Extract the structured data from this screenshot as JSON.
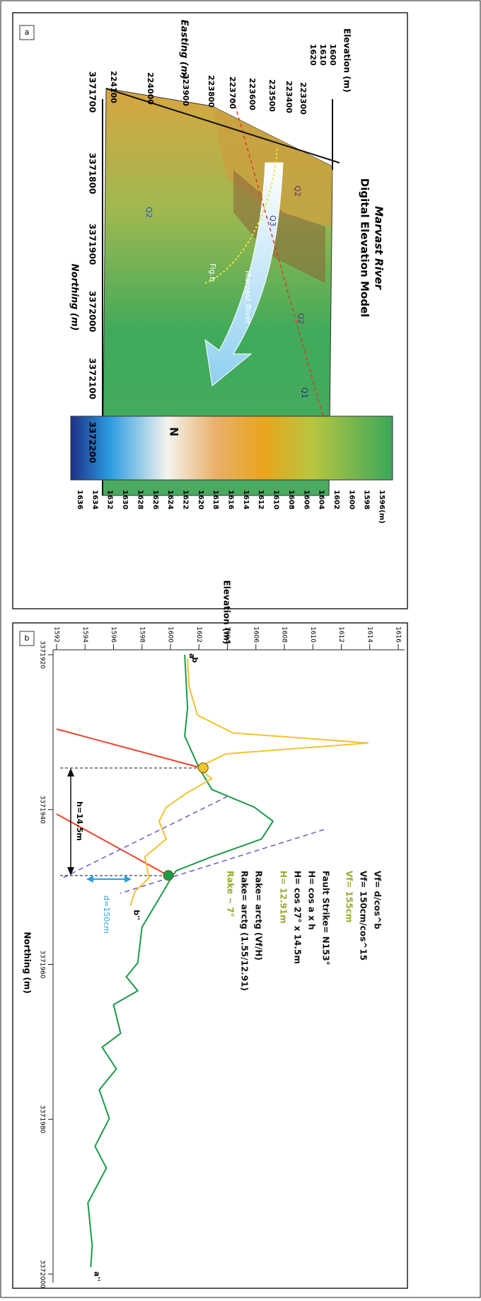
{
  "panel_a": {
    "label": "a",
    "title_lines": [
      "Marvast River",
      "Digital Elevation Model"
    ],
    "elevation_label": "Elevation (m)",
    "elevation_ticks": [
      "1620",
      "1610",
      "1600"
    ],
    "easting_label": "Easting (m)",
    "easting_ticks": [
      "224100",
      "224000",
      "223900",
      "223800",
      "223700",
      "223600",
      "223500",
      "223400",
      "223300"
    ],
    "northing_label": "Northing (m)",
    "northing_ticks": [
      "3371700",
      "3371800",
      "3371900",
      "3372000",
      "3372100",
      "3372200"
    ],
    "map_labels": [
      "Q2",
      "Q3",
      "Q2",
      "Q1",
      "Q2",
      "Fig.b",
      "Marvast River",
      "N"
    ],
    "colorbar_ticks": [
      "1596",
      "1598",
      "1600",
      "1602",
      "1604",
      "1606",
      "1608",
      "1610",
      "1612",
      "1614",
      "1616",
      "1618",
      "1620",
      "1622",
      "1624",
      "1626",
      "1628",
      "1630",
      "1632",
      "1634",
      "1636"
    ],
    "colorbar_unit": "(m)"
  },
  "chart_data": {
    "type": "line",
    "panel_label": "b",
    "xlabel": "Northing (m)",
    "ylabel": "Elevation (m)",
    "xlim": [
      3371920,
      3372000
    ],
    "ylim": [
      1592,
      1616
    ],
    "xticks": [
      3371920,
      3371940,
      3371960,
      3371980,
      3372000
    ],
    "yticks": [
      1592,
      1594,
      1596,
      1598,
      1600,
      1602,
      1604,
      1606,
      1608,
      1610,
      1612,
      1614,
      1616
    ],
    "series": [
      {
        "labels": [
          "a",
          "a''"
        ],
        "color": "#1a9a4a",
        "x": [
          3371920.0,
          3371926.9,
          3371930.5,
          3371934.6,
          3371937.4,
          3371939.7,
          3371941.5,
          3371943.8,
          3371946.1,
          3371947.9,
          3371949.3,
          3371951.5,
          3371955.2,
          3371959.8,
          3371961.6,
          3371963.4,
          3371965.2,
          3371968.9,
          3371970.7,
          3371973.5,
          3371976.2,
          3371979.9,
          3371983.5,
          3371986.3,
          3371990.8,
          3371996.3,
          3371999.1
        ],
        "values": [
          1601.0,
          1601.2,
          1601.0,
          1602.0,
          1602.9,
          1605.9,
          1607.2,
          1606.4,
          1602.9,
          1600.4,
          1599.9,
          1599.2,
          1598.0,
          1597.7,
          1596.9,
          1597.7,
          1596.0,
          1596.5,
          1595.2,
          1596.2,
          1595.0,
          1595.7,
          1594.7,
          1595.5,
          1594.2,
          1594.5,
          1594.4
        ]
      },
      {
        "labels": [
          "b",
          "b''"
        ],
        "color": "#f2c230",
        "x": [
          3371920.5,
          3371924.1,
          3371927.8,
          3371930.1,
          3371931.4,
          3371932.8,
          3371934.6,
          3371936.0,
          3371937.8,
          3371939.7,
          3371941.5,
          3371943.8,
          3371946.1,
          3371948.8,
          3371950.6,
          3371952.4
        ],
        "values": [
          1601.2,
          1601.3,
          1601.9,
          1604.4,
          1613.9,
          1603.9,
          1601.9,
          1602.9,
          1601.2,
          1599.7,
          1599.2,
          1599.7,
          1598.2,
          1598.5,
          1597.5,
          1597.2
        ]
      }
    ],
    "points": [
      {
        "x": 3371934.6,
        "y": 1602.3,
        "color": "#f2c230"
      },
      {
        "x": 3371948.5,
        "y": 1599.85,
        "color": "#1a9a4a"
      }
    ],
    "measure_labels": [
      "h=14.5m",
      "d=150cm"
    ],
    "annotations": [
      {
        "text": "Vf= d/cos^b",
        "color": "#111111"
      },
      {
        "text": "Vf= 150cm/cos^15",
        "color": "#111111"
      },
      {
        "text": "Vf= 155cm",
        "color": "#9aa832"
      },
      {
        "text": "Fault Strike= N153°",
        "color": "#111111"
      },
      {
        "text": "H= cos a x h",
        "color": "#111111"
      },
      {
        "text": "H= cos 27° x 14.5m",
        "color": "#111111"
      },
      {
        "text": "H= 12.91m",
        "color": "#9aa832"
      },
      {
        "text": "Rake= arctg (Vf/H)",
        "color": "#111111"
      },
      {
        "text": "Rake= arctg (1.55/12.91)",
        "color": "#111111"
      },
      {
        "text": "Rake ~ 7°",
        "color": "#9aa832"
      }
    ]
  }
}
